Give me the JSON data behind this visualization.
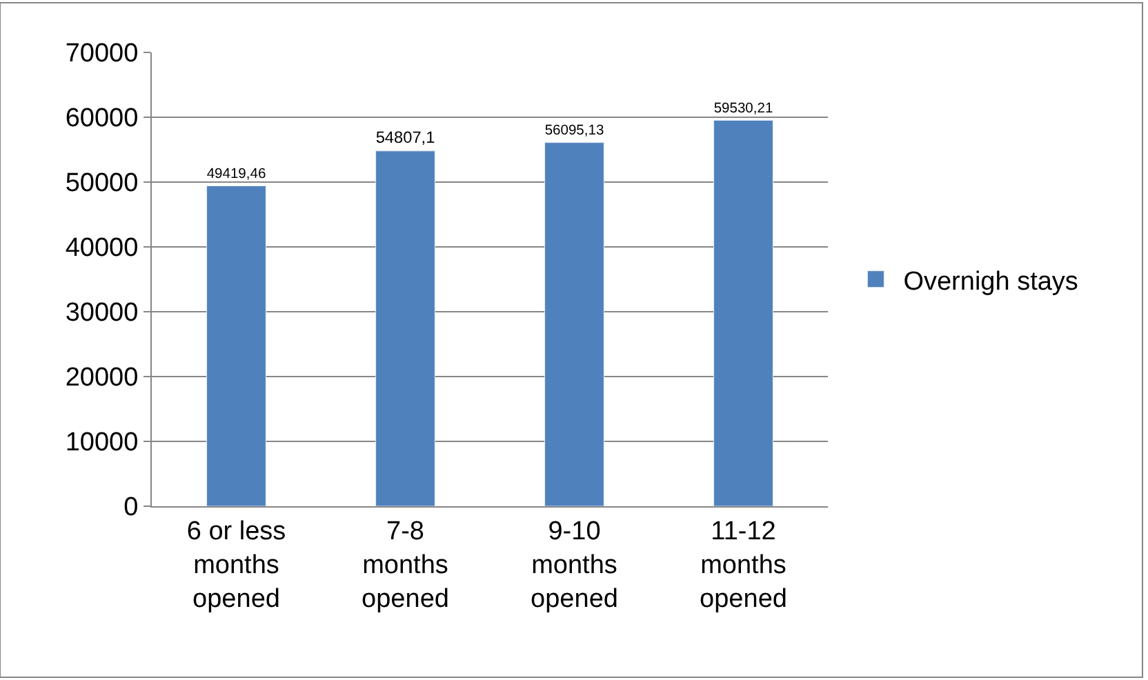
{
  "chart_data": {
    "type": "bar",
    "categories": [
      "6 or less months opened",
      "7-8 months opened",
      "9-10 months opened",
      "11-12 months opened"
    ],
    "series": [
      {
        "name": "Overnigh stays",
        "color": "#4f81bd",
        "values": [
          49419.46,
          54807.1,
          56095.13,
          59530.21
        ]
      }
    ],
    "value_labels": [
      "49419,46",
      "54807,1",
      "56095,13",
      "59530,21"
    ],
    "ylim": [
      0,
      70000
    ],
    "yticks": [
      0,
      10000,
      20000,
      30000,
      40000,
      50000,
      60000,
      70000
    ],
    "grid": "y",
    "legend": "right"
  }
}
